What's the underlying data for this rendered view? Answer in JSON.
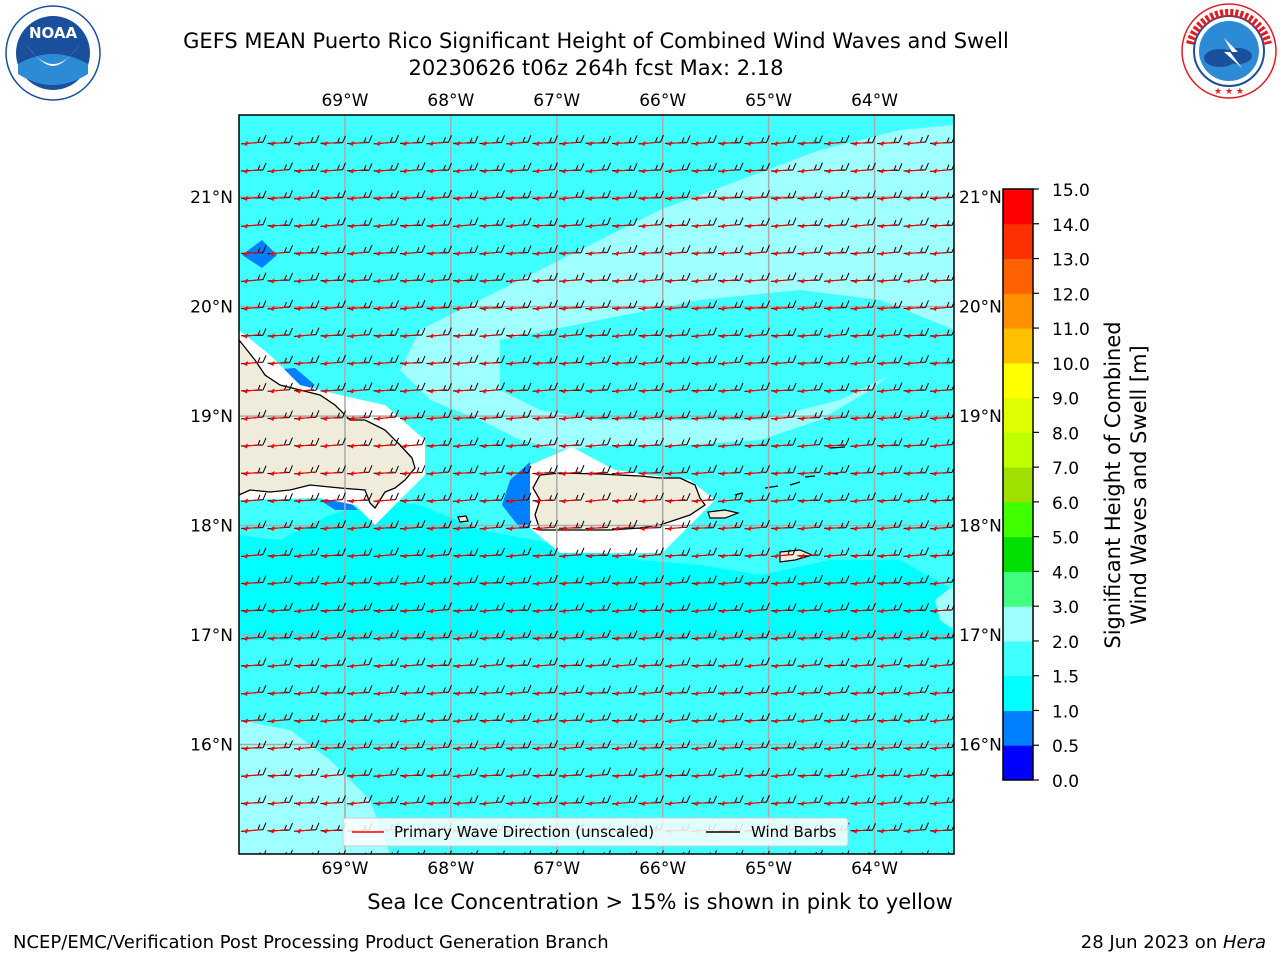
{
  "title": {
    "line1": "GEFS MEAN Puerto Rico Significant Height of Combined Wind Waves and Swell",
    "line2": "20230626 t06z 264h fcst   Max: 2.18"
  },
  "logos": {
    "noaa": {
      "text": "NOAA",
      "ring_text": "NATIONAL OCEANIC AND ATMOSPHERIC ADMINISTRATION · U.S. DEPARTMENT OF COMMERCE",
      "color": "#1a4f9c"
    },
    "nws": {
      "ring_text": "NATIONAL WEATHER SERVICE",
      "color": "#e31b23"
    }
  },
  "map": {
    "lon_labels": [
      "69°W",
      "68°W",
      "67°W",
      "66°W",
      "65°W",
      "64°W"
    ],
    "lon_values": [
      -69,
      -68,
      -67,
      -66,
      -65,
      -64
    ],
    "lat_labels": [
      "21°N",
      "20°N",
      "19°N",
      "18°N",
      "17°N",
      "16°N"
    ],
    "lat_values": [
      21,
      20,
      19,
      18,
      17,
      16
    ],
    "extent": {
      "lon_min": -70.0,
      "lon_max": -63.25,
      "lat_min": 15.0,
      "lat_max": 21.75
    },
    "ocean_color": "#00ffff",
    "land_color": "#f0ecdc",
    "legend": {
      "wave_label": "Primary Wave Direction (unscaled)",
      "wave_color": "#ff0000",
      "barb_label": "Wind Barbs",
      "barb_color": "#000000"
    }
  },
  "colorbar": {
    "title_line1": "Significant Height of Combined",
    "title_line2": "Wind Waves and Swell [m]",
    "ticks": [
      "0.0",
      "0.5",
      "1.0",
      "1.5",
      "2.0",
      "3.0",
      "4.0",
      "5.0",
      "6.0",
      "7.0",
      "8.0",
      "9.0",
      "10.0",
      "11.0",
      "12.0",
      "13.0",
      "14.0",
      "15.0"
    ],
    "colors": [
      "#0000ff",
      "#0080ff",
      "#00ffff",
      "#40ffff",
      "#a0ffff",
      "#40ff80",
      "#00e000",
      "#40ff00",
      "#a0e000",
      "#c0ff00",
      "#e0ff00",
      "#ffff00",
      "#ffc000",
      "#ff9000",
      "#ff6000",
      "#ff3000",
      "#ff0000"
    ]
  },
  "note": "Sea Ice Concentration > 15% is shown in pink to yellow",
  "footer": {
    "left": "NCEP/EMC/Verification Post Processing Product Generation Branch",
    "right_prefix": "28 Jun 2023 on ",
    "right_host": "Hera"
  }
}
